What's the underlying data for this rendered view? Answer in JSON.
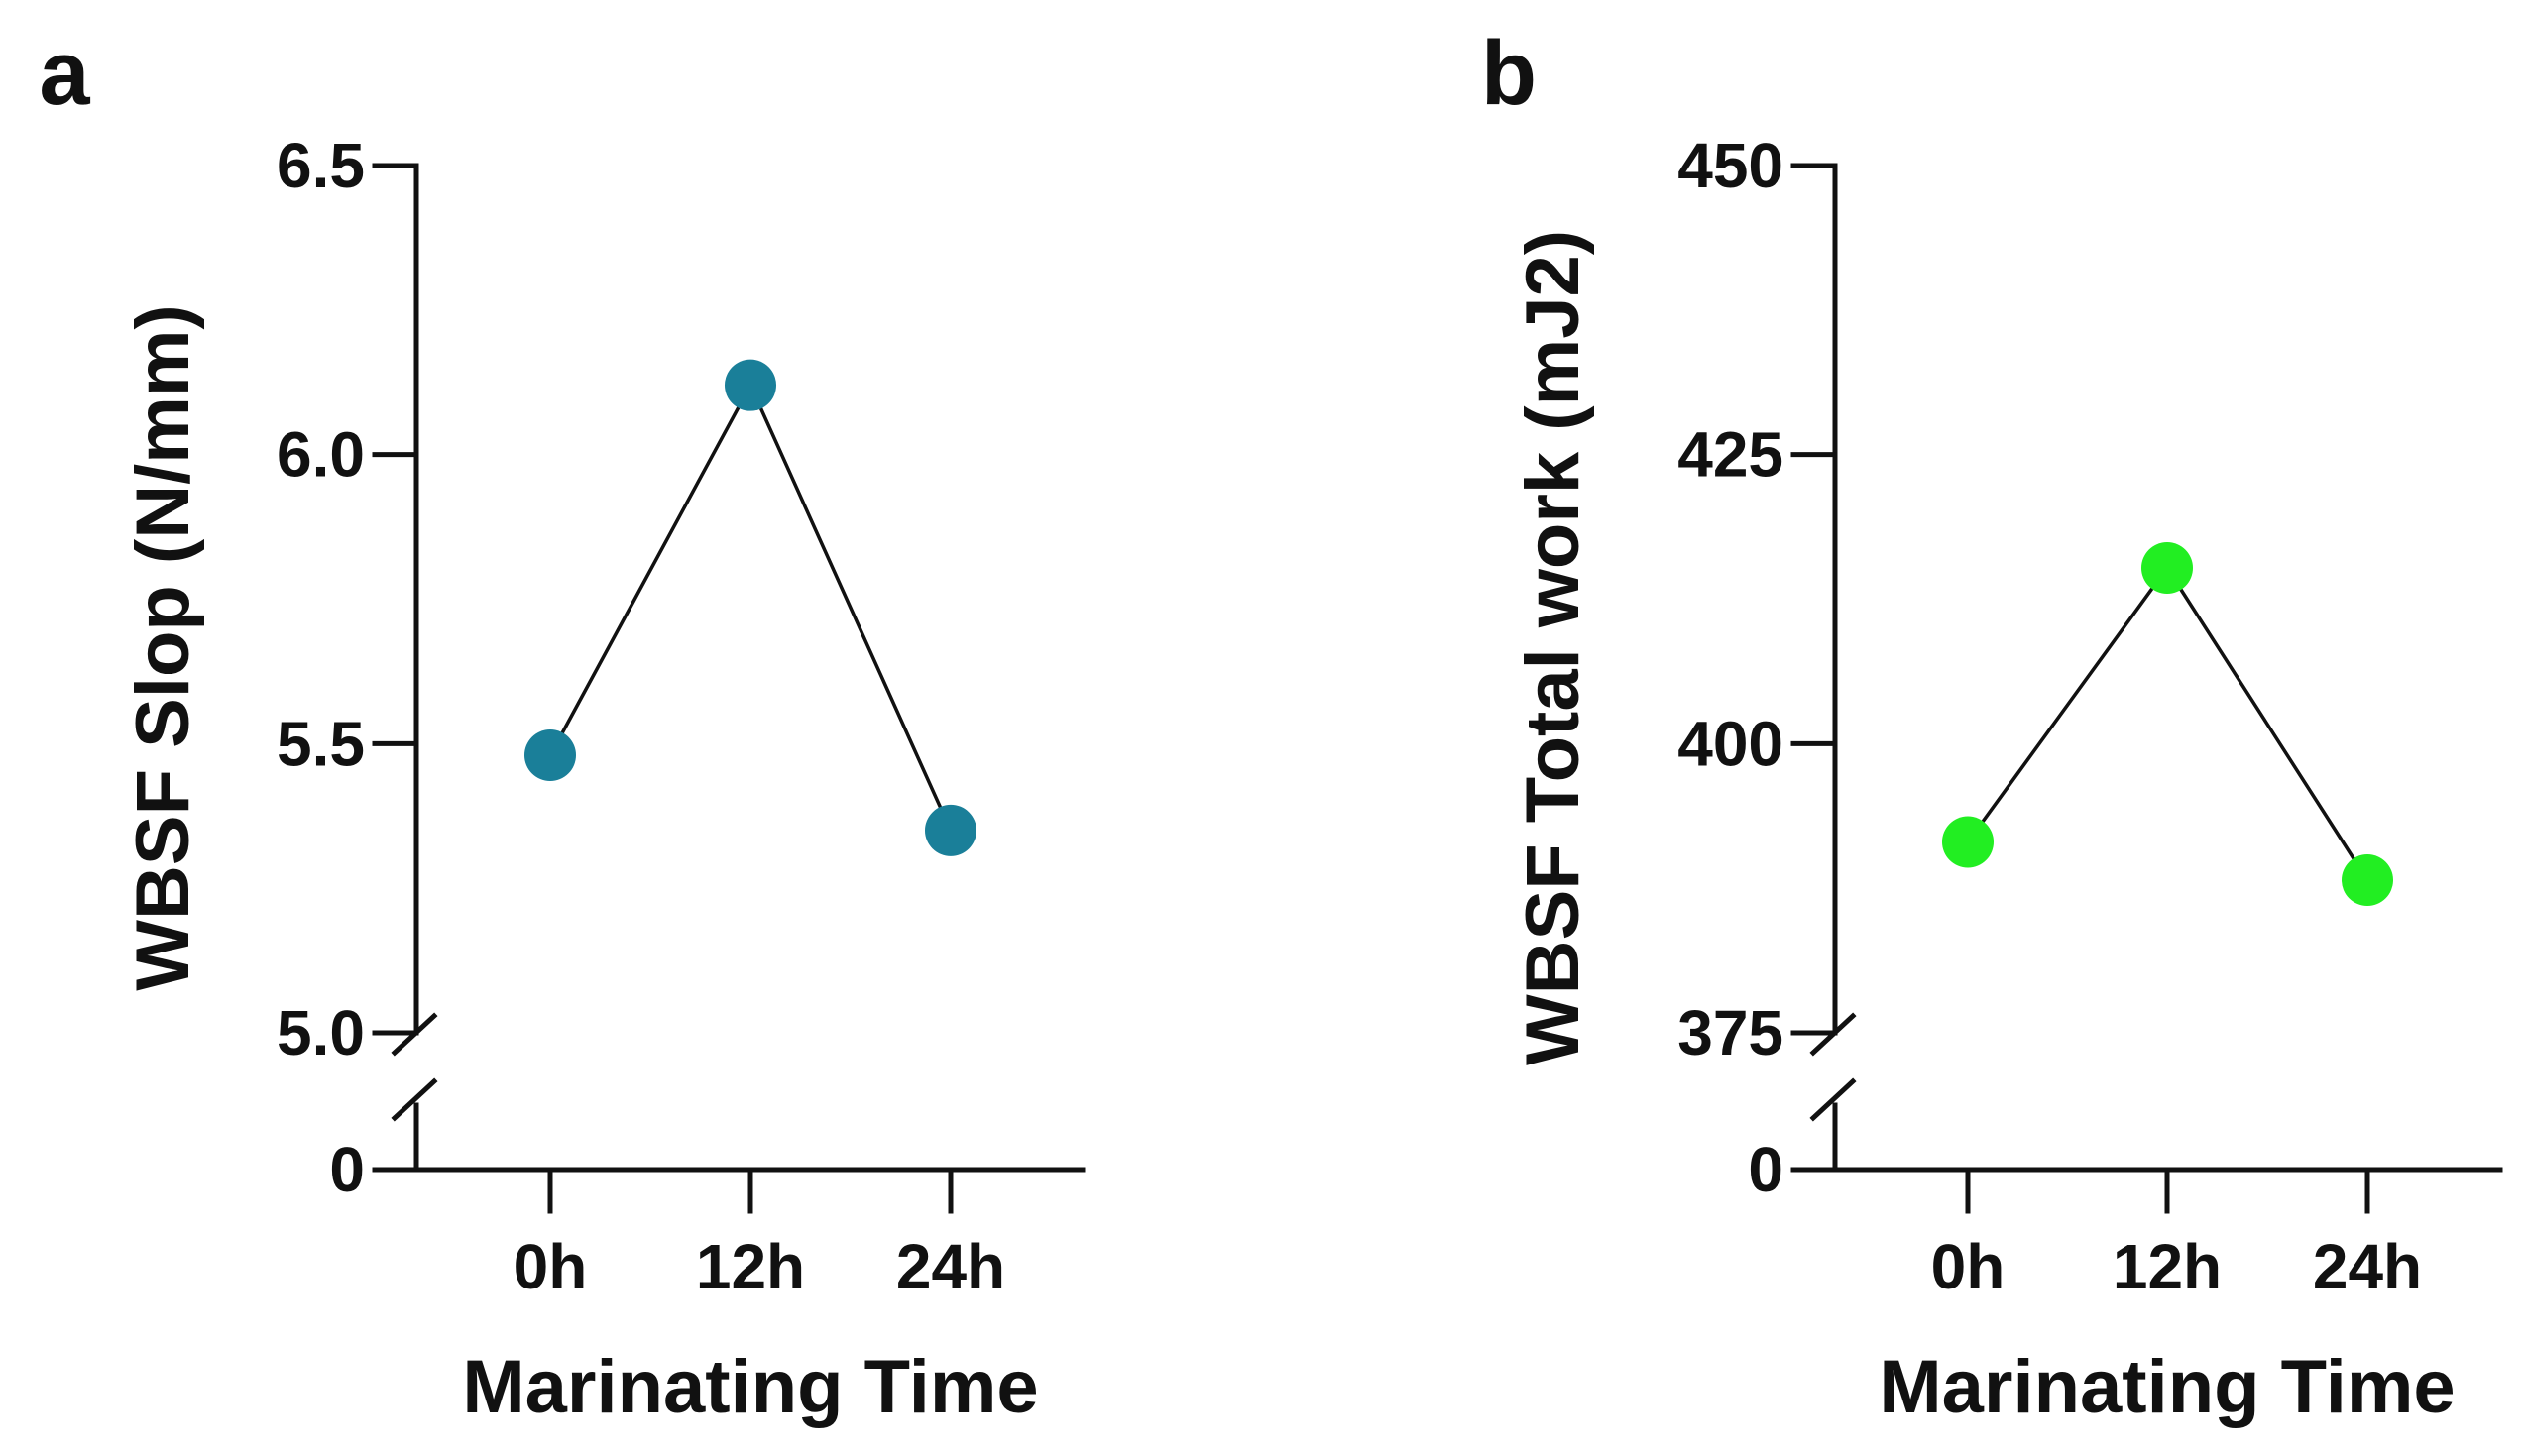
{
  "chart_data": [
    {
      "panel_label": "a",
      "type": "line",
      "categories": [
        "0h",
        "12h",
        "24h"
      ],
      "values": [
        5.48,
        6.12,
        5.35
      ],
      "xlabel": "Marinating Time",
      "ylabel": "WBSF Slop (N/mm)",
      "ylim": [
        5.0,
        6.5
      ],
      "yticks": [
        "6.5",
        "6.0",
        "5.5",
        "5.0"
      ],
      "ybreak_label": "0",
      "marker_color": "#1a7f99",
      "line_color": "#111111"
    },
    {
      "panel_label": "b",
      "type": "line",
      "categories": [
        "0h",
        "12h",
        "24h"
      ],
      "values": [
        391.5,
        415.2,
        388.2
      ],
      "xlabel": "Marinating Time",
      "ylabel": "WBSF Total work (mJ2)",
      "ylim": [
        375,
        450
      ],
      "yticks": [
        "450",
        "425",
        "400",
        "375"
      ],
      "ybreak_label": "0",
      "marker_color": "#22ee22",
      "line_color": "#111111"
    }
  ]
}
